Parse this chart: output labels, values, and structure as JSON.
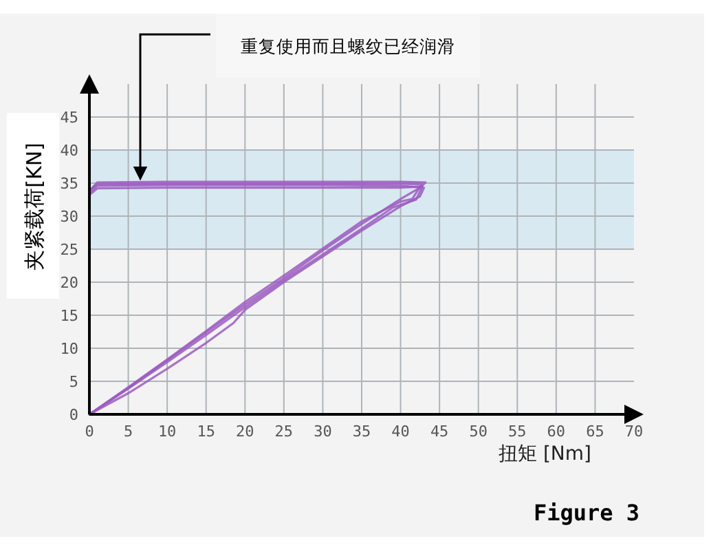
{
  "chart_data": {
    "type": "line",
    "xlabel": "扭矩 [Nm]",
    "ylabel": "夹紧载荷[KN]",
    "xlim": [
      0,
      70
    ],
    "ylim": [
      0,
      50
    ],
    "xticks": [
      0,
      5,
      10,
      15,
      20,
      25,
      30,
      35,
      40,
      45,
      50,
      55,
      60,
      65,
      70
    ],
    "yticks": [
      0,
      5,
      10,
      15,
      20,
      25,
      30,
      35,
      40,
      45
    ],
    "grid": true,
    "bands": [
      {
        "axis": "y",
        "from": 25,
        "to": 40,
        "color": "#d9e9f1"
      }
    ],
    "series": [
      {
        "color": "#9b5cc0",
        "x": [
          0,
          5,
          10,
          15,
          20,
          25,
          30,
          35,
          40,
          42.5,
          43.2,
          40,
          30,
          20,
          10,
          1,
          0
        ],
        "values": [
          0,
          4,
          8.2,
          12.4,
          16.6,
          20.6,
          24.8,
          28.8,
          32.6,
          34.3,
          35.1,
          35.2,
          35.2,
          35.2,
          35.2,
          35.1,
          33.8
        ]
      },
      {
        "color": "#9b5cc0",
        "x": [
          0,
          5,
          10,
          15,
          18.5,
          20,
          25,
          30,
          35,
          40,
          42.5,
          43,
          40,
          30,
          20,
          10,
          1,
          0
        ],
        "values": [
          0,
          3.2,
          6.9,
          10.8,
          13.8,
          15.8,
          20,
          23.9,
          27.8,
          31.5,
          33,
          34.3,
          34.6,
          34.7,
          34.7,
          34.7,
          34.6,
          33.5
        ]
      },
      {
        "color": "#9b5cc0",
        "x": [
          0,
          5,
          10,
          15,
          20,
          25,
          30,
          35,
          39,
          42,
          42.8,
          40,
          30,
          20,
          10,
          1,
          0
        ],
        "values": [
          0,
          3.9,
          7.9,
          12,
          16.2,
          20.3,
          24.2,
          28.1,
          31.3,
          32.5,
          34.5,
          34.3,
          34.3,
          34.3,
          34.3,
          34.2,
          33.2
        ]
      },
      {
        "color": "#9b5cc0",
        "x": [
          0,
          5,
          10,
          15,
          20,
          25,
          30,
          35,
          40,
          41.5,
          42.7,
          40,
          30,
          20,
          10,
          1,
          0
        ],
        "values": [
          0,
          4.1,
          8.3,
          12.6,
          17,
          21,
          25.1,
          29.2,
          32.2,
          32.6,
          34.8,
          34.9,
          34.9,
          34.9,
          34.9,
          34.8,
          33.9
        ]
      }
    ],
    "annotations": [
      "重复使用而且螺纹已经润滑",
      "Figure 3"
    ]
  }
}
